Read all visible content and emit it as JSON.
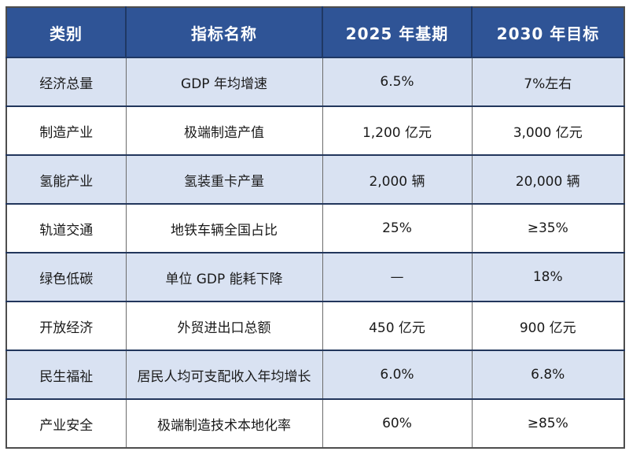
{
  "table": {
    "columns": [
      {
        "key": "category",
        "label": "类别"
      },
      {
        "key": "indicator",
        "label": "指标名称"
      },
      {
        "key": "base_2025",
        "label": "2025 年基期"
      },
      {
        "key": "target_2030",
        "label": "2030 年目标"
      }
    ],
    "rows": [
      {
        "category": "经济总量",
        "indicator": "GDP 年均增速",
        "base_2025": "6.5%",
        "target_2030": "7%左右",
        "shaded": true
      },
      {
        "category": "制造产业",
        "indicator": "极端制造产值",
        "base_2025": "1,200 亿元",
        "target_2030": "3,000 亿元",
        "shaded": false
      },
      {
        "category": "氢能产业",
        "indicator": "氢装重卡产量",
        "base_2025": "2,000 辆",
        "target_2030": "20,000 辆",
        "shaded": true
      },
      {
        "category": "轨道交通",
        "indicator": "地铁车辆全国占比",
        "base_2025": "25%",
        "target_2030": "≥35%",
        "shaded": false
      },
      {
        "category": "绿色低碳",
        "indicator": "单位 GDP 能耗下降",
        "base_2025": "—",
        "target_2030": "18%",
        "shaded": true
      },
      {
        "category": "开放经济",
        "indicator": "外贸进出口总额",
        "base_2025": "450 亿元",
        "target_2030": "900 亿元",
        "shaded": false
      },
      {
        "category": "民生福祉",
        "indicator": "居民人均可支配收入年均增长",
        "base_2025": "6.0%",
        "target_2030": "6.8%",
        "shaded": true
      },
      {
        "category": "产业安全",
        "indicator": "极端制造技术本地化率",
        "base_2025": "60%",
        "target_2030": "≥85%",
        "shaded": false
      }
    ],
    "colors": {
      "header_bg": "#2F5496",
      "header_text": "#FFFFFF",
      "shaded_row_bg": "#D9E2F2",
      "plain_row_bg": "#FFFFFF",
      "border_dark_navy": "#1F3864",
      "border_gray": "#6B6B6B",
      "body_text": "#1A1A1A"
    }
  }
}
